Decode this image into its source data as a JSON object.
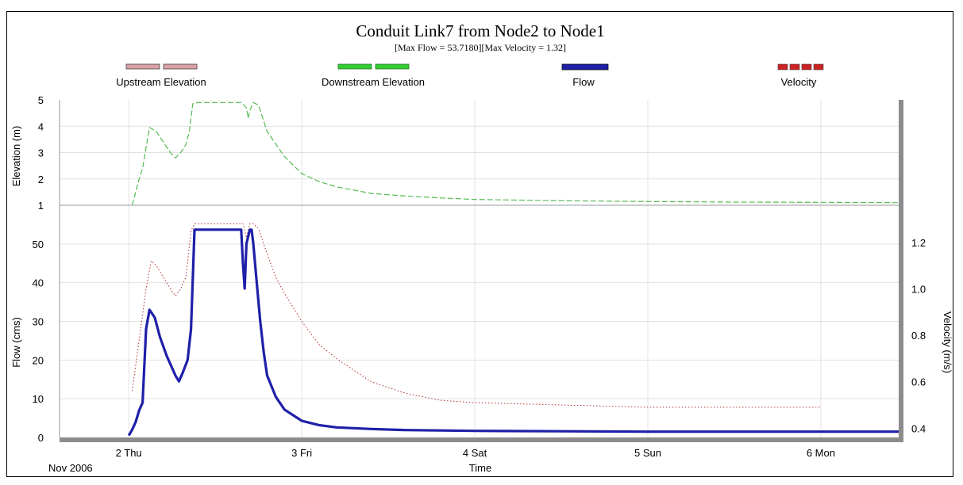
{
  "chart_data": {
    "type": "line",
    "title": "Conduit Link7 from Node2 to Node1",
    "subtitle": "[Max Flow = 53.7180][Max Velocity = 1.32]",
    "legend": {
      "placement": "top",
      "entries": [
        {
          "name": "Upstream Elevation",
          "color": "#e8b4b8",
          "style": "dashed"
        },
        {
          "name": "Downstream Elevation",
          "color": "#33cc33",
          "style": "dashed"
        },
        {
          "name": "Flow",
          "color": "#1f1fa8",
          "style": "solid"
        },
        {
          "name": "Velocity",
          "color": "#cc2222",
          "style": "dotted"
        }
      ]
    },
    "x_axis": {
      "title": "Time",
      "date_label": "Nov 2006",
      "range": [
        1.6,
        6.45
      ],
      "ticks": [
        {
          "v": 2,
          "label": "2 Thu"
        },
        {
          "v": 3,
          "label": "3 Fri"
        },
        {
          "v": 4,
          "label": "4 Sat"
        },
        {
          "v": 5,
          "label": "5 Sun"
        },
        {
          "v": 6,
          "label": "6 Mon"
        }
      ]
    },
    "upper_panel": {
      "ylabel": "Elevation (m)",
      "ylim": [
        1,
        5
      ],
      "yticks": [
        "1",
        "2",
        "3",
        "4",
        "5"
      ],
      "series": [
        {
          "name": "Downstream Elevation",
          "x": [
            2.02,
            2.06,
            2.08,
            2.12,
            2.16,
            2.2,
            2.24,
            2.27,
            2.3,
            2.33,
            2.35,
            2.37,
            2.4,
            2.5,
            2.6,
            2.65,
            2.68,
            2.69,
            2.7,
            2.72,
            2.75,
            2.8,
            2.9,
            3.0,
            3.1,
            3.2,
            3.4,
            3.6,
            3.8,
            4.0,
            4.5,
            5.0,
            5.5,
            6.0,
            6.45
          ],
          "y": [
            1.0,
            2.0,
            2.4,
            3.95,
            3.8,
            3.4,
            3.0,
            2.8,
            3.0,
            3.3,
            3.8,
            4.85,
            4.9,
            4.9,
            4.9,
            4.9,
            4.7,
            4.3,
            4.6,
            4.9,
            4.8,
            3.8,
            2.85,
            2.2,
            1.9,
            1.7,
            1.45,
            1.35,
            1.28,
            1.22,
            1.17,
            1.14,
            1.12,
            1.11,
            1.1
          ]
        }
      ]
    },
    "lower_panel": {
      "ylabel": "Flow (cms)",
      "ylim": [
        0,
        60
      ],
      "yticks": [
        "0",
        "10",
        "20",
        "30",
        "40",
        "50"
      ],
      "y2label": "Velocity (m/s)",
      "y2lim": [
        0.36,
        1.36
      ],
      "y2ticks": [
        "0.4",
        "0.6",
        "0.8",
        "1.0",
        "1.2"
      ],
      "series": [
        {
          "name": "Flow",
          "x": [
            2.0,
            2.02,
            2.04,
            2.06,
            2.08,
            2.1,
            2.12,
            2.15,
            2.18,
            2.22,
            2.25,
            2.27,
            2.29,
            2.31,
            2.34,
            2.36,
            2.38,
            2.4,
            2.5,
            2.6,
            2.65,
            2.66,
            2.67,
            2.68,
            2.7,
            2.71,
            2.72,
            2.74,
            2.76,
            2.78,
            2.8,
            2.85,
            2.9,
            3.0,
            3.1,
            3.2,
            3.4,
            3.6,
            3.8,
            4.0,
            4.5,
            5.0,
            5.5,
            6.0,
            6.45
          ],
          "y": [
            0.5,
            2.0,
            4.0,
            7.0,
            9.0,
            28.0,
            33.0,
            31.0,
            26.0,
            21.0,
            18.0,
            16.0,
            14.5,
            16.5,
            20.0,
            28.0,
            53.7,
            53.7,
            53.7,
            53.7,
            53.7,
            45.0,
            38.5,
            50.0,
            53.7,
            53.7,
            50.0,
            40.0,
            30.0,
            22.0,
            16.0,
            10.5,
            7.2,
            4.3,
            3.2,
            2.6,
            2.2,
            1.9,
            1.8,
            1.7,
            1.6,
            1.5,
            1.5,
            1.5,
            1.5
          ]
        },
        {
          "name": "Velocity",
          "axis": "y2",
          "x": [
            2.02,
            2.06,
            2.1,
            2.13,
            2.16,
            2.2,
            2.24,
            2.27,
            2.3,
            2.33,
            2.36,
            2.38,
            2.4,
            2.5,
            2.6,
            2.66,
            2.68,
            2.7,
            2.72,
            2.75,
            2.8,
            2.85,
            2.9,
            3.0,
            3.1,
            3.2,
            3.4,
            3.6,
            3.8,
            4.0,
            4.5,
            5.0,
            5.5,
            6.0
          ],
          "y": [
            0.56,
            0.78,
            1.0,
            1.12,
            1.1,
            1.05,
            1.0,
            0.97,
            1.0,
            1.05,
            1.25,
            1.28,
            1.28,
            1.28,
            1.28,
            1.28,
            1.22,
            1.28,
            1.28,
            1.26,
            1.15,
            1.05,
            0.98,
            0.86,
            0.76,
            0.7,
            0.6,
            0.55,
            0.52,
            0.51,
            0.5,
            0.49,
            0.49,
            0.49
          ]
        }
      ]
    }
  }
}
